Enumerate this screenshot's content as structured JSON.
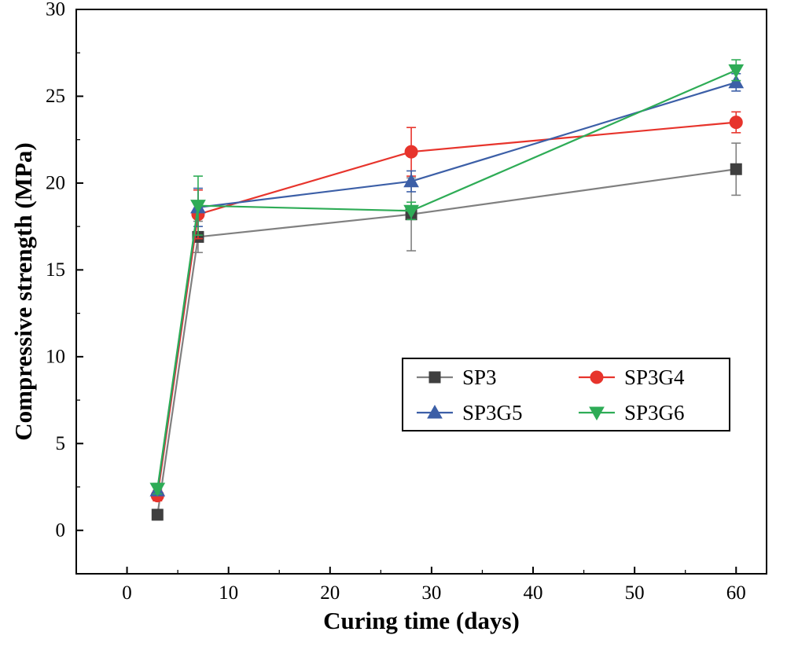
{
  "figure": {
    "background": "#ffffff",
    "text_color": "#000000"
  },
  "chart_data": {
    "type": "line",
    "title": "",
    "xlabel": "Curing time (days)",
    "ylabel": "Compressive strength (MPa)",
    "x": [
      3,
      7,
      28,
      60
    ],
    "series": [
      {
        "name": "SP3",
        "marker": "square",
        "marker_color": "#3f3f3f",
        "line_color": "#808080",
        "values": [
          0.9,
          16.9,
          18.2,
          20.8
        ],
        "errors": [
          0.3,
          0.9,
          2.1,
          1.5
        ]
      },
      {
        "name": "SP3G4",
        "marker": "circle",
        "marker_color": "#e7342c",
        "line_color": "#e7342c",
        "values": [
          2.0,
          18.2,
          21.8,
          23.5
        ],
        "errors": [
          0.3,
          1.4,
          1.4,
          0.6
        ]
      },
      {
        "name": "SP3G5",
        "marker": "triangle-up",
        "marker_color": "#3c5fa7",
        "line_color": "#3c5fa7",
        "values": [
          2.3,
          18.6,
          20.1,
          25.8
        ],
        "errors": [
          0.3,
          1.1,
          0.6,
          0.5
        ]
      },
      {
        "name": "SP3G6",
        "marker": "triangle-down",
        "marker_color": "#2eac56",
        "line_color": "#2eac56",
        "values": [
          2.4,
          18.7,
          18.4,
          26.5
        ],
        "errors": [
          0.3,
          1.7,
          0.5,
          0.6
        ]
      }
    ],
    "xlim": [
      -5,
      63
    ],
    "ylim": [
      -2.5,
      30
    ],
    "xticks": [
      0,
      10,
      20,
      30,
      40,
      50,
      60
    ],
    "yticks": [
      0,
      5,
      10,
      15,
      20,
      25,
      30
    ],
    "x_minor_step": 5,
    "y_minor_step": 2.5,
    "grid": false,
    "legend": {
      "position": "inside-center-right",
      "columns": 2,
      "border": true,
      "entries": [
        "SP3",
        "SP3G4",
        "SP3G5",
        "SP3G6"
      ]
    }
  }
}
